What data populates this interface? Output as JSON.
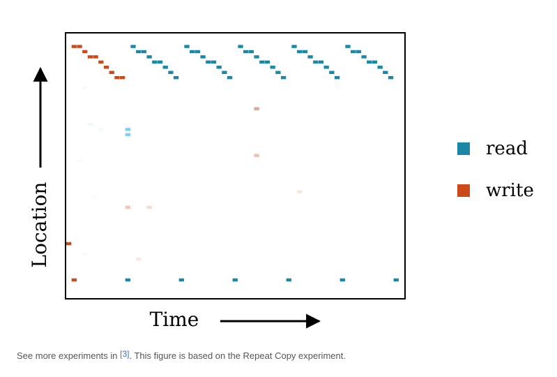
{
  "chart_data": {
    "type": "heatmap",
    "title": "",
    "xlabel": "Time",
    "ylabel": "Location",
    "grid": false,
    "legend_position": "right",
    "time_range": [
      0,
      62
    ],
    "location_range": [
      0,
      50
    ],
    "series": [
      {
        "name": "read",
        "color": "#1a87a6",
        "points": [
          [
            12,
            2
          ],
          [
            13,
            3
          ],
          [
            14,
            3
          ],
          [
            15,
            4
          ],
          [
            16,
            5
          ],
          [
            17,
            5
          ],
          [
            18,
            6
          ],
          [
            19,
            7
          ],
          [
            20,
            8
          ],
          [
            22,
            2
          ],
          [
            23,
            3
          ],
          [
            24,
            3
          ],
          [
            25,
            4
          ],
          [
            26,
            5
          ],
          [
            27,
            5
          ],
          [
            28,
            6
          ],
          [
            29,
            7
          ],
          [
            30,
            8
          ],
          [
            32,
            2
          ],
          [
            33,
            3
          ],
          [
            34,
            3
          ],
          [
            35,
            4
          ],
          [
            36,
            5
          ],
          [
            37,
            5
          ],
          [
            38,
            6
          ],
          [
            39,
            7
          ],
          [
            40,
            8
          ],
          [
            42,
            2
          ],
          [
            43,
            3
          ],
          [
            44,
            3
          ],
          [
            45,
            4
          ],
          [
            46,
            5
          ],
          [
            47,
            5
          ],
          [
            48,
            6
          ],
          [
            49,
            7
          ],
          [
            50,
            8
          ],
          [
            52,
            2
          ],
          [
            53,
            3
          ],
          [
            54,
            3
          ],
          [
            55,
            4
          ],
          [
            56,
            5
          ],
          [
            57,
            5
          ],
          [
            58,
            6
          ],
          [
            59,
            7
          ],
          [
            60,
            8
          ],
          [
            11,
            47
          ],
          [
            21,
            47
          ],
          [
            31,
            47
          ],
          [
            41,
            47
          ],
          [
            51,
            47
          ],
          [
            61,
            47
          ]
        ]
      },
      {
        "name": "write",
        "color": "#cc4a1a",
        "points": [
          [
            1,
            2
          ],
          [
            2,
            2
          ],
          [
            3,
            3
          ],
          [
            4,
            4
          ],
          [
            5,
            4
          ],
          [
            6,
            5
          ],
          [
            7,
            6
          ],
          [
            8,
            7
          ],
          [
            9,
            8
          ],
          [
            10,
            8
          ],
          [
            0,
            40
          ],
          [
            1,
            47
          ]
        ]
      }
    ],
    "faint_marks": [
      {
        "series": "read",
        "t": 11,
        "loc": 18,
        "intensity": 0.8
      },
      {
        "series": "read",
        "t": 11,
        "loc": 19,
        "intensity": 0.8
      },
      {
        "series": "read",
        "t": 4,
        "loc": 17,
        "intensity": 0.12
      },
      {
        "series": "read",
        "t": 6,
        "loc": 18,
        "intensity": 0.1
      },
      {
        "series": "read",
        "t": 3,
        "loc": 10,
        "intensity": 0.06
      },
      {
        "series": "read",
        "t": 2,
        "loc": 24,
        "intensity": 0.05
      },
      {
        "series": "read",
        "t": 5,
        "loc": 31,
        "intensity": 0.05
      },
      {
        "series": "read",
        "t": 3,
        "loc": 42,
        "intensity": 0.06
      },
      {
        "series": "write",
        "t": 35,
        "loc": 14,
        "intensity": 0.5
      },
      {
        "series": "write",
        "t": 35,
        "loc": 23,
        "intensity": 0.35
      },
      {
        "series": "write",
        "t": 11,
        "loc": 33,
        "intensity": 0.3
      },
      {
        "series": "write",
        "t": 15,
        "loc": 33,
        "intensity": 0.2
      },
      {
        "series": "write",
        "t": 43,
        "loc": 30,
        "intensity": 0.15
      },
      {
        "series": "write",
        "t": 13,
        "loc": 43,
        "intensity": 0.12
      }
    ]
  },
  "caption": {
    "before": "See more experiments in ",
    "ref": "[3]",
    "after": ". This figure is based on the Repeat Copy experiment."
  }
}
